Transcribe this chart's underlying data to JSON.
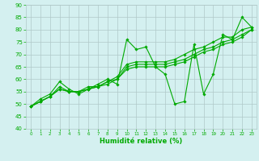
{
  "series": [
    {
      "x": [
        0,
        1,
        2,
        3,
        4,
        5,
        6,
        7,
        8,
        9,
        10,
        11,
        12,
        13,
        14,
        15,
        16,
        17,
        18,
        19,
        20,
        21,
        22,
        23
      ],
      "y": [
        49,
        52,
        54,
        59,
        56,
        54,
        56,
        58,
        60,
        58,
        76,
        72,
        73,
        65,
        62,
        50,
        51,
        74,
        54,
        62,
        78,
        76,
        85,
        81
      ]
    },
    {
      "x": [
        0,
        1,
        2,
        3,
        4,
        5,
        6,
        7,
        8,
        9,
        10,
        11,
        12,
        13,
        14,
        15,
        16,
        17,
        18,
        19,
        20,
        21,
        22,
        23
      ],
      "y": [
        49,
        51,
        53,
        56,
        55,
        55,
        56,
        57,
        58,
        60,
        64,
        65,
        65,
        65,
        65,
        66,
        67,
        69,
        71,
        72,
        74,
        75,
        77,
        80
      ]
    },
    {
      "x": [
        0,
        1,
        2,
        3,
        4,
        5,
        6,
        7,
        8,
        9,
        10,
        11,
        12,
        13,
        14,
        15,
        16,
        17,
        18,
        19,
        20,
        21,
        22,
        23
      ],
      "y": [
        49,
        51,
        53,
        56,
        55,
        55,
        57,
        57,
        59,
        60,
        65,
        66,
        66,
        66,
        66,
        67,
        68,
        70,
        72,
        73,
        75,
        76,
        78,
        80
      ]
    },
    {
      "x": [
        0,
        1,
        2,
        3,
        4,
        5,
        6,
        7,
        8,
        9,
        10,
        11,
        12,
        13,
        14,
        15,
        16,
        17,
        18,
        19,
        20,
        21,
        22,
        23
      ],
      "y": [
        49,
        51,
        53,
        57,
        55,
        55,
        56,
        57,
        59,
        61,
        66,
        67,
        67,
        67,
        67,
        68,
        70,
        72,
        73,
        75,
        77,
        77,
        80,
        81
      ]
    }
  ],
  "xlim": [
    -0.5,
    23.5
  ],
  "ylim": [
    40,
    90
  ],
  "xticks": [
    0,
    1,
    2,
    3,
    4,
    5,
    6,
    7,
    8,
    9,
    10,
    11,
    12,
    13,
    14,
    15,
    16,
    17,
    18,
    19,
    20,
    21,
    22,
    23
  ],
  "yticks": [
    40,
    45,
    50,
    55,
    60,
    65,
    70,
    75,
    80,
    85,
    90
  ],
  "xlabel": "Humidité relative (%)",
  "background_color": "#d4f0f0",
  "grid_color": "#b0c8c8",
  "line_color": "#00aa00",
  "tick_color": "#00aa00",
  "xlabel_color": "#00aa00"
}
